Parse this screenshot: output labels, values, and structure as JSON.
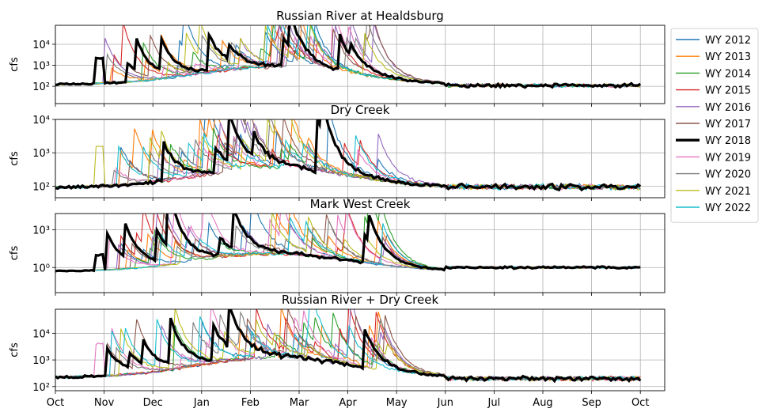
{
  "chart_data": [
    {
      "type": "line",
      "title": "Russian River at Healdsburg",
      "ylabel": "cfs",
      "yscale": "log",
      "ylim": [
        15,
        80000
      ],
      "yticks": [
        100,
        1000,
        10000
      ],
      "ytick_labels": [
        "10²",
        "10³",
        "10⁴"
      ],
      "base": 120,
      "summer": 110,
      "storm": 20000
    },
    {
      "type": "line",
      "title": "Dry Creek",
      "ylabel": "cfs",
      "yscale": "log",
      "ylim": [
        45,
        10000
      ],
      "yticks": [
        100,
        1000,
        10000
      ],
      "ytick_labels": [
        "10²",
        "10³",
        "10⁴"
      ],
      "base": 90,
      "summer": 95,
      "storm": 3000
    },
    {
      "type": "line",
      "title": "Mark West Creek",
      "ylabel": "cfs",
      "yscale": "log",
      "ylim": [
        0.01,
        20000
      ],
      "yticks": [
        1,
        1000
      ],
      "ytick_labels": [
        "10⁰",
        "10³"
      ],
      "base": 0.5,
      "summer": 1,
      "storm": 2000
    },
    {
      "type": "line",
      "title": "Russian River + Dry Creek",
      "ylabel": "cfs",
      "yscale": "log",
      "ylim": [
        70,
        80000
      ],
      "yticks": [
        100,
        1000,
        10000
      ],
      "ytick_labels": [
        "10²",
        "10³",
        "10⁴"
      ],
      "base": 220,
      "summer": 200,
      "storm": 20000
    }
  ],
  "x_axis": {
    "range_months": [
      0,
      12.5
    ],
    "ticks": [
      0,
      1,
      2,
      3,
      4,
      5,
      6,
      7,
      8,
      9,
      10,
      11,
      12
    ],
    "tick_labels": [
      "Oct",
      "Nov",
      "Dec",
      "Jan",
      "Feb",
      "Mar",
      "Apr",
      "May",
      "Jun",
      "Jul",
      "Aug",
      "Sep",
      "Oct"
    ],
    "grid": true
  },
  "legend": {
    "placement": "outside-right",
    "series": [
      {
        "name": "WY 2012",
        "color": "#1f77b4",
        "highlight": false
      },
      {
        "name": "WY 2013",
        "color": "#ff7f0e",
        "highlight": false
      },
      {
        "name": "WY 2014",
        "color": "#2ca02c",
        "highlight": false
      },
      {
        "name": "WY 2015",
        "color": "#d62728",
        "highlight": false
      },
      {
        "name": "WY 2016",
        "color": "#9467bd",
        "highlight": false
      },
      {
        "name": "WY 2017",
        "color": "#8c564b",
        "highlight": false
      },
      {
        "name": "WY 2018",
        "color": "#000000",
        "highlight": true
      },
      {
        "name": "WY 2019",
        "color": "#e377c2",
        "highlight": false
      },
      {
        "name": "WY 2020",
        "color": "#7f7f7f",
        "highlight": false
      },
      {
        "name": "WY 2021",
        "color": "#bcbd22",
        "highlight": false
      },
      {
        "name": "WY 2022",
        "color": "#17becf",
        "highlight": false
      }
    ]
  }
}
